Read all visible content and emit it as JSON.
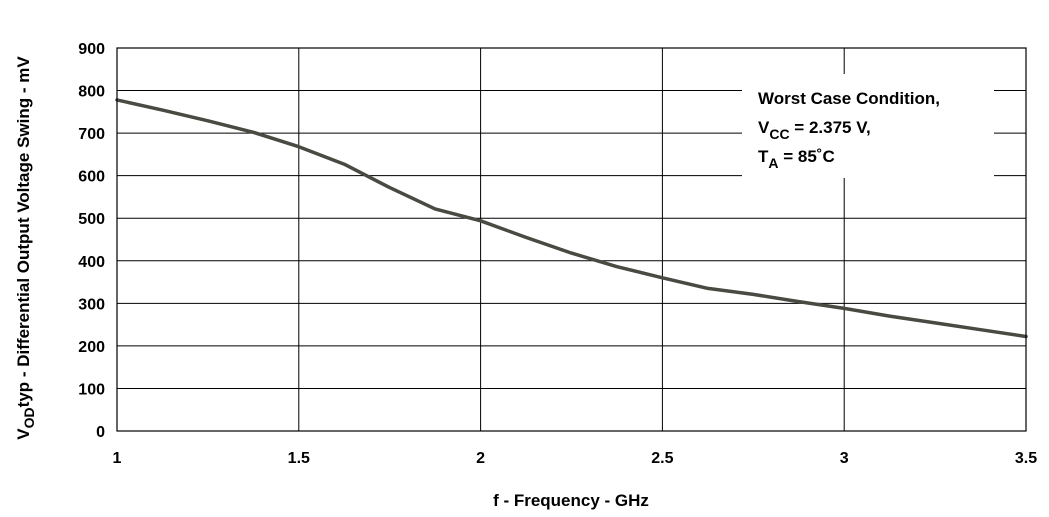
{
  "chart_data": {
    "type": "line",
    "title": "",
    "xlabel": "f - Frequency - GHz",
    "ylabel": {
      "main": "V",
      "sub": "OD",
      "rest": "typ - Differential Output Voltage Swing - mV"
    },
    "xlim": [
      1,
      3.5
    ],
    "ylim": [
      0,
      900
    ],
    "x_ticks": [
      1,
      1.5,
      2,
      2.5,
      3,
      3.5
    ],
    "x_tick_labels": [
      "1",
      "1.5",
      "2",
      "2.5",
      "3",
      "3.5"
    ],
    "y_ticks": [
      0,
      100,
      200,
      300,
      400,
      500,
      600,
      700,
      800,
      900
    ],
    "y_tick_labels": [
      "0",
      "100",
      "200",
      "300",
      "400",
      "500",
      "600",
      "700",
      "800",
      "900"
    ],
    "grid": true,
    "series": [
      {
        "color": "#4a4a42",
        "x": [
          1.0,
          1.125,
          1.25,
          1.375,
          1.5,
          1.625,
          1.75,
          1.875,
          2.0,
          2.125,
          2.25,
          2.375,
          2.5,
          2.625,
          2.75,
          2.875,
          3.0,
          3.125,
          3.25,
          3.375,
          3.5
        ],
        "y": [
          778,
          754,
          729,
          702,
          668,
          627,
          572,
          522,
          494,
          455,
          418,
          386,
          360,
          335,
          321,
          304,
          288,
          270,
          254,
          238,
          222
        ]
      }
    ],
    "annotation": {
      "line1": "Worst Case Condition,",
      "line2": {
        "main": "V",
        "sub": "CC",
        "rest": " = 2.375 V,"
      },
      "line3": {
        "main": "T",
        "sub": "A",
        "rest": " = 85˚C"
      }
    }
  }
}
